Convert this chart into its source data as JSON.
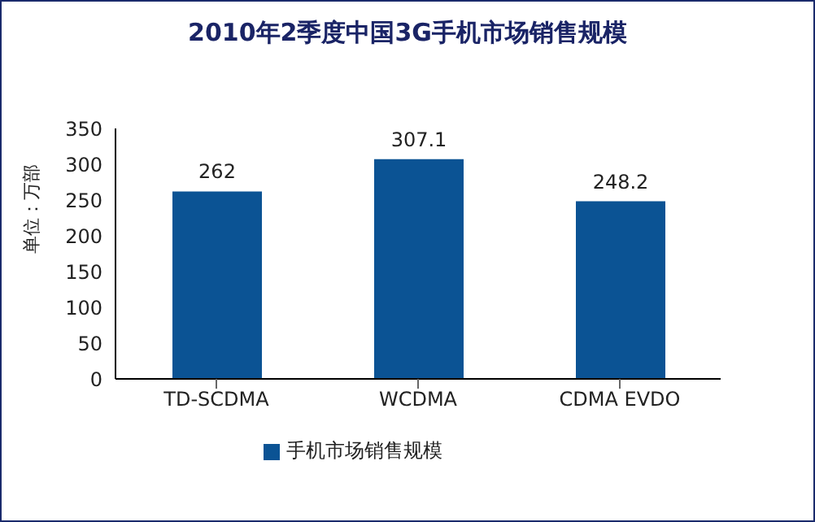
{
  "chart_data": {
    "type": "bar",
    "title": "2010年2季度中国3G手机市场销售规模",
    "ylabel": "单位：万部",
    "categories": [
      "TD-SCDMA",
      "WCDMA",
      "CDMA EVDO"
    ],
    "series": [
      {
        "name": "手机市场销售规模",
        "color": "#0b5394",
        "values": [
          262,
          307.1,
          248.2
        ]
      }
    ],
    "ylim": [
      0,
      350
    ],
    "yticks": [
      0,
      50,
      100,
      150,
      200,
      250,
      300,
      350
    ],
    "grid": false,
    "legend": "bottom",
    "data_labels": true
  }
}
